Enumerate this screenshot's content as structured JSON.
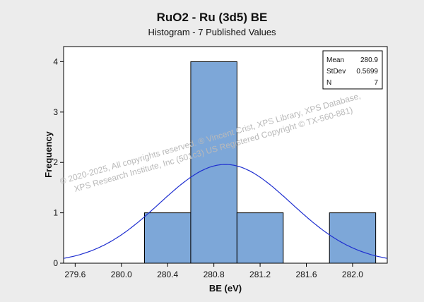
{
  "chart_data": {
    "type": "bar",
    "title": "RuO2 - Ru (3d5) BE",
    "subtitle": "Histogram  - 7 Published Values",
    "xlabel": "BE (eV)",
    "ylabel": "Frequency",
    "xlim": [
      279.5,
      282.3
    ],
    "ylim": [
      0,
      4.3
    ],
    "x_ticks": [
      "279.6",
      "280.0",
      "280.4",
      "280.8",
      "281.2",
      "281.6",
      "282.0"
    ],
    "y_ticks": [
      "0",
      "1",
      "2",
      "3",
      "4"
    ],
    "bins": [
      {
        "start": 280.2,
        "end": 280.6,
        "count": 1
      },
      {
        "start": 280.6,
        "end": 281.0,
        "count": 4
      },
      {
        "start": 281.0,
        "end": 281.4,
        "count": 1
      },
      {
        "start": 281.8,
        "end": 282.2,
        "count": 1
      }
    ],
    "fit_curve": {
      "type": "normal",
      "mean": 280.9,
      "stdev": 0.5699,
      "n": 7,
      "bin_width": 0.4
    },
    "stats": [
      {
        "label": "Mean",
        "value": "280.9"
      },
      {
        "label": "StDev",
        "value": "0.5699"
      },
      {
        "label": "N",
        "value": "7"
      }
    ],
    "legend_position": "top-right",
    "colors": {
      "bar_fill": "#7da7d8",
      "bar_stroke": "#000000",
      "curve": "#1f2fd0",
      "plot_bg": "#ffffff",
      "page_bg": "#ececec"
    }
  },
  "watermark": {
    "line1": "© 2020-2025,  All copyrights reserved.  ®  Vincent Crist,  XPS Library, XPS Database,",
    "line2": "XPS Research Institute, Inc (501c3)  US Registered Copyright © TX-560-881)"
  }
}
